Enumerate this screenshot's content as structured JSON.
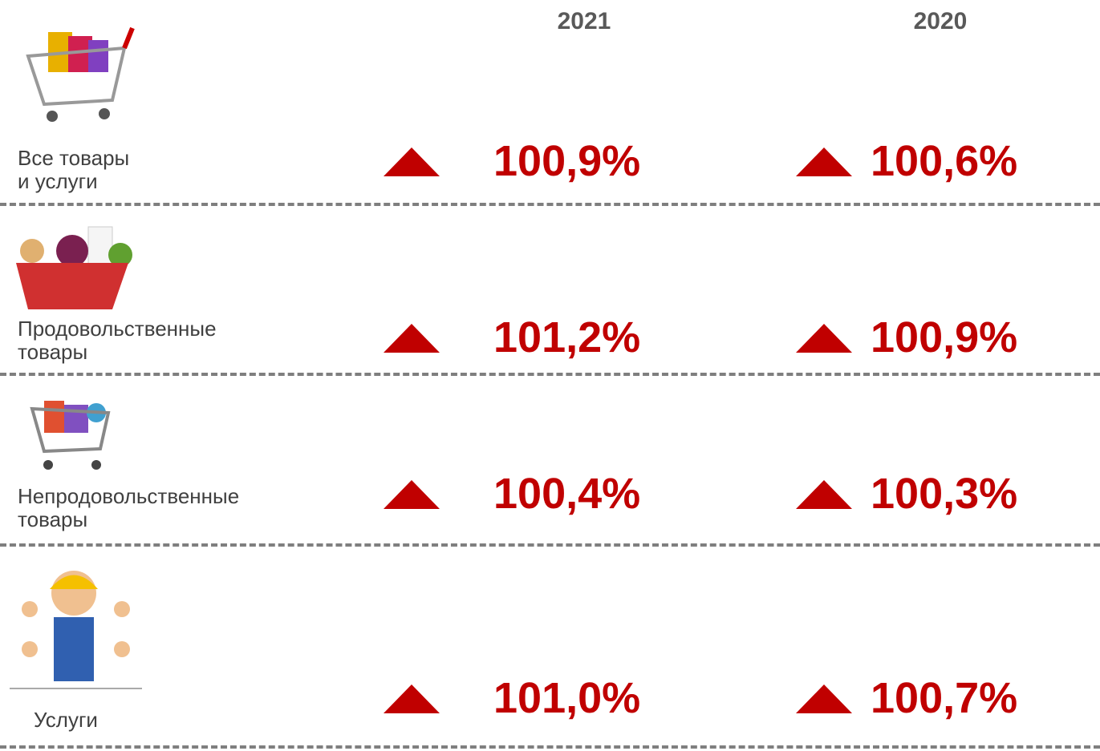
{
  "header": {
    "columns": [
      "2021",
      "2020"
    ]
  },
  "rows": [
    {
      "label": [
        "Все товары",
        "и услуги"
      ],
      "values": [
        "100,9%",
        "100,6%"
      ]
    },
    {
      "label": [
        "Продовольственные",
        "товары"
      ],
      "values": [
        "101,2%",
        "100,9%"
      ]
    },
    {
      "label": [
        "Непродовольственные",
        "товары"
      ],
      "values": [
        "100,4%",
        "100,3%"
      ]
    },
    {
      "label": [
        "Услуги"
      ],
      "values": [
        "101,0%",
        "100,7%"
      ]
    }
  ]
}
